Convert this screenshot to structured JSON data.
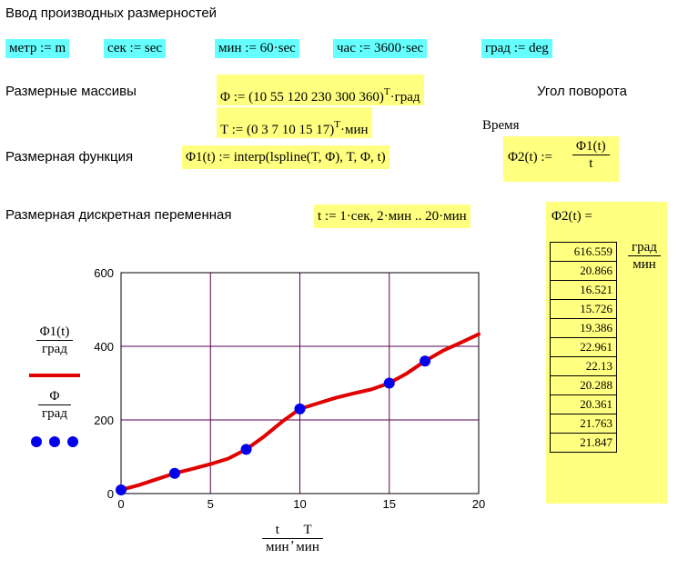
{
  "header": {
    "title": "Ввод производных размерностей"
  },
  "defs": [
    "метр := m",
    "сек := sec",
    "мин := 60·sec",
    "час := 3600·sec",
    "град := deg"
  ],
  "arrays": {
    "label": "Размерные массивы",
    "phi_expr": "Φ := (10  55  120  230  300  360)",
    "phi_sup": "T",
    "phi_unit": "·град",
    "phi_comment": "Угол поворота",
    "t_expr": "T := (0  3  7  10  15  17)",
    "t_sup": "T",
    "t_unit": "·мин",
    "t_comment": "Время"
  },
  "func": {
    "label": "Размерная функция",
    "phi1_expr": "Φ1(t) := interp(lspline(T, Φ), T, Φ, t)",
    "phi2_lhs": "Φ2(t) :=",
    "phi2_num": "Φ1(t)",
    "phi2_den": "t"
  },
  "discrete": {
    "label": "Размерная дискретная переменная",
    "range_expr": "t := 1·сек, 2·мин .. 20·мин"
  },
  "result": {
    "lhs": "Φ2(t) =",
    "unit_num": "град",
    "unit_den": "мин",
    "values": [
      "616.559",
      "20.866",
      "16.521",
      "15.726",
      "19.386",
      "22.961",
      "22.13",
      "20.288",
      "20.361",
      "21.763",
      "21.847"
    ]
  },
  "legend": {
    "curve_num": "Φ1(t)",
    "curve_den": "град",
    "points_num": "Φ",
    "points_den": "град"
  },
  "xaxis": {
    "t_num": "t",
    "t_den": "мин",
    "sep": ",",
    "T_num": "T",
    "T_den": "мин"
  },
  "colors": {
    "cyan": "#66ffff",
    "yellow": "#ffff80",
    "curve": "#e00000",
    "points": "#0000ee",
    "grid": "#5a0050"
  },
  "chart_data": {
    "type": "line",
    "xlim": [
      0,
      20
    ],
    "ylim": [
      0,
      600
    ],
    "xticks": [
      0,
      5,
      10,
      15,
      20
    ],
    "yticks": [
      0,
      200,
      400,
      600
    ],
    "grid": true,
    "series": [
      {
        "kind": "line",
        "x": [
          0,
          1,
          2,
          3,
          4,
          5,
          6,
          7,
          8,
          9,
          10,
          11,
          12,
          13,
          14,
          15,
          16,
          17,
          18,
          19,
          20
        ],
        "y": [
          10,
          23,
          39,
          55,
          67,
          80,
          95,
          120,
          155,
          195,
          230,
          245,
          260,
          272,
          283,
          300,
          327,
          360,
          388,
          410,
          433
        ]
      },
      {
        "kind": "scatter",
        "x": [
          0,
          3,
          7,
          10,
          15,
          17
        ],
        "y": [
          10,
          55,
          120,
          230,
          300,
          360
        ]
      }
    ]
  }
}
